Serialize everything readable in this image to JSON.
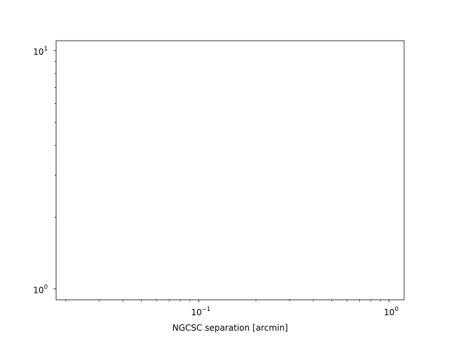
{
  "chart_data": {
    "type": "line",
    "title": "",
    "xlabel": "NGCSC separation [arcmin]",
    "ylabel": "",
    "xscale": "log",
    "yscale": "log",
    "xlim": [
      0.0178,
      1.2
    ],
    "ylim": [
      0.9,
      11.0
    ],
    "series": [],
    "grid": false,
    "legend": "none",
    "x_major_ticks": [
      {
        "value": 0.1,
        "base": "10",
        "exp": "−1"
      },
      {
        "value": 1.0,
        "base": "10",
        "exp": "0"
      }
    ],
    "y_major_ticks": [
      {
        "value": 1.0,
        "base": "10",
        "exp": "0"
      },
      {
        "value": 10.0,
        "base": "10",
        "exp": "1"
      }
    ],
    "x_minor_ticks": [
      0.02,
      0.03,
      0.04,
      0.05,
      0.06,
      0.07,
      0.08,
      0.09,
      0.2,
      0.3,
      0.4,
      0.5,
      0.6,
      0.7,
      0.8,
      0.9
    ],
    "y_minor_ticks": [
      2,
      3,
      4,
      5,
      6,
      7,
      8,
      9
    ],
    "colors": {
      "axes": "#000000",
      "background": "#ffffff"
    }
  }
}
